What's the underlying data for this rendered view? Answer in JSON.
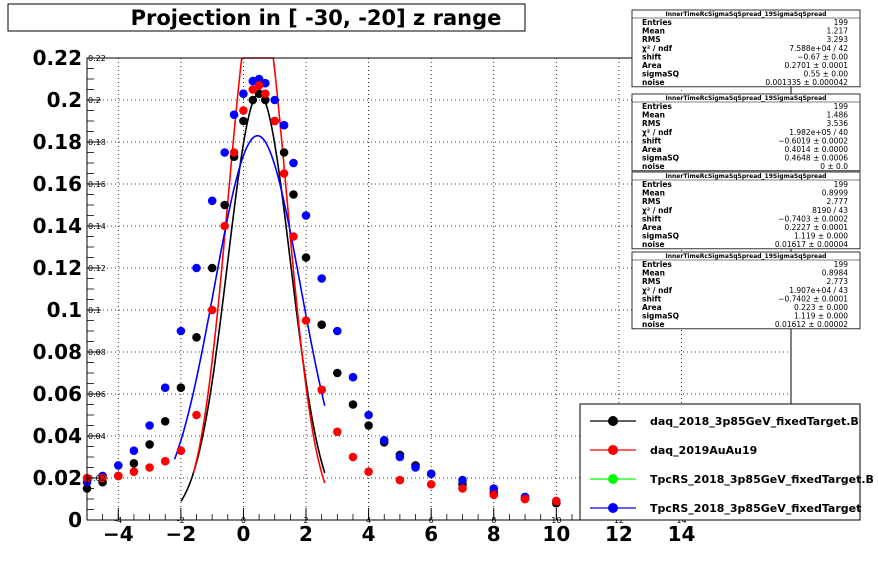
{
  "chart_data": {
    "type": "scatter",
    "title": "Projection in [ -30, -20] z range",
    "xlim": [
      -5,
      17.5
    ],
    "ylim": [
      0,
      0.22
    ],
    "x_ticks_major": [
      -4,
      -2,
      0,
      2,
      4,
      6,
      8,
      10,
      12,
      14
    ],
    "y_ticks_major": [
      0,
      0.02,
      0.04,
      0.06,
      0.08,
      0.1,
      0.12,
      0.14,
      0.16,
      0.18,
      0.2,
      0.22
    ],
    "x_tick_labels": [
      "−4",
      "−2",
      "0",
      "2",
      "4",
      "6",
      "8",
      "10",
      "12",
      "14"
    ],
    "y_tick_labels": [
      "0",
      "0.02",
      "0.04",
      "0.06",
      "0.08",
      "0.1",
      "0.12",
      "0.14",
      "0.16",
      "0.18",
      "0.2",
      "0.22"
    ],
    "x_ticks_minor_upper": [
      -4,
      -2,
      0,
      2,
      4,
      6,
      8,
      10,
      12,
      14
    ],
    "x_ticks_minor_upper_labels": [
      "-4",
      "-2",
      "0",
      "2",
      "4",
      "6",
      "8",
      "10",
      "12",
      "14"
    ],
    "y_ticks_minor_right": [
      0.02,
      0.04,
      0.06,
      0.08,
      0.1,
      0.12,
      0.14,
      0.16,
      0.18,
      0.2,
      0.22
    ],
    "y_ticks_minor_right_labels": [
      "0.02",
      "0.04",
      "0.06",
      "0.08",
      "0.1",
      "0.12",
      "0.14",
      "0.16",
      "0.18",
      "0.2",
      "0.22"
    ],
    "grid": true,
    "legend_position": "bottom-right",
    "series": [
      {
        "name": "daq_2018_3p85GeV_fixedTarget.B",
        "color": "#000000",
        "points": [
          [
            -5.0,
            0.015
          ],
          [
            -4.5,
            0.018
          ],
          [
            -4.0,
            0.021
          ],
          [
            -3.5,
            0.027
          ],
          [
            -3.0,
            0.036
          ],
          [
            -2.5,
            0.047
          ],
          [
            -2.0,
            0.063
          ],
          [
            -1.5,
            0.087
          ],
          [
            -1.0,
            0.12
          ],
          [
            -0.6,
            0.15
          ],
          [
            -0.3,
            0.173
          ],
          [
            0.0,
            0.19
          ],
          [
            0.3,
            0.2
          ],
          [
            0.5,
            0.203
          ],
          [
            0.7,
            0.2
          ],
          [
            1.0,
            0.19
          ],
          [
            1.3,
            0.175
          ],
          [
            1.6,
            0.155
          ],
          [
            2.0,
            0.125
          ],
          [
            2.5,
            0.093
          ],
          [
            3.0,
            0.07
          ],
          [
            3.5,
            0.055
          ],
          [
            4.0,
            0.045
          ],
          [
            4.5,
            0.037
          ],
          [
            5.0,
            0.031
          ],
          [
            5.5,
            0.026
          ],
          [
            6.0,
            0.022
          ],
          [
            7.0,
            0.017
          ],
          [
            8.0,
            0.013
          ],
          [
            9.0,
            0.01
          ],
          [
            10.0,
            0.008
          ]
        ]
      },
      {
        "name": "daq_2019AuAu19",
        "color": "#ff0000",
        "points": [
          [
            -5.0,
            0.02
          ],
          [
            -4.5,
            0.02
          ],
          [
            -4.0,
            0.021
          ],
          [
            -3.5,
            0.023
          ],
          [
            -3.0,
            0.025
          ],
          [
            -2.5,
            0.028
          ],
          [
            -2.0,
            0.033
          ],
          [
            -1.5,
            0.05
          ],
          [
            -1.0,
            0.1
          ],
          [
            -0.6,
            0.14
          ],
          [
            -0.3,
            0.175
          ],
          [
            0.0,
            0.195
          ],
          [
            0.3,
            0.205
          ],
          [
            0.5,
            0.207
          ],
          [
            0.7,
            0.203
          ],
          [
            1.0,
            0.19
          ],
          [
            1.3,
            0.165
          ],
          [
            1.6,
            0.135
          ],
          [
            2.0,
            0.095
          ],
          [
            2.5,
            0.062
          ],
          [
            3.0,
            0.042
          ],
          [
            3.5,
            0.03
          ],
          [
            4.0,
            0.023
          ],
          [
            5.0,
            0.019
          ],
          [
            6.0,
            0.017
          ],
          [
            7.0,
            0.015
          ],
          [
            8.0,
            0.012
          ],
          [
            9.0,
            0.01
          ],
          [
            10.0,
            0.009
          ]
        ]
      },
      {
        "name": "TpcRS_2018_3p85GeV_fixedTarget.B",
        "color": "#00ff00",
        "points": []
      },
      {
        "name": "TpcRS_2018_3p85GeV_fixedTarget",
        "color": "#0000ff",
        "points": [
          [
            -5.0,
            0.018
          ],
          [
            -4.5,
            0.021
          ],
          [
            -4.0,
            0.026
          ],
          [
            -3.5,
            0.033
          ],
          [
            -3.0,
            0.045
          ],
          [
            -2.5,
            0.063
          ],
          [
            -2.0,
            0.09
          ],
          [
            -1.5,
            0.12
          ],
          [
            -1.0,
            0.152
          ],
          [
            -0.6,
            0.175
          ],
          [
            -0.3,
            0.193
          ],
          [
            0.0,
            0.203
          ],
          [
            0.3,
            0.209
          ],
          [
            0.5,
            0.21
          ],
          [
            0.7,
            0.208
          ],
          [
            1.0,
            0.2
          ],
          [
            1.3,
            0.188
          ],
          [
            1.6,
            0.17
          ],
          [
            2.0,
            0.145
          ],
          [
            2.5,
            0.115
          ],
          [
            3.0,
            0.09
          ],
          [
            3.5,
            0.068
          ],
          [
            4.0,
            0.05
          ],
          [
            4.5,
            0.038
          ],
          [
            5.0,
            0.03
          ],
          [
            5.5,
            0.025
          ],
          [
            6.0,
            0.022
          ],
          [
            7.0,
            0.019
          ],
          [
            8.0,
            0.015
          ],
          [
            9.0,
            0.011
          ],
          [
            10.0,
            0.009
          ]
        ]
      }
    ],
    "fits": [
      {
        "color": "#000000",
        "mean": 0.5,
        "sigma": 1.0,
        "amp": 0.203,
        "range": [
          -2.0,
          2.6
        ]
      },
      {
        "color": "#ff0000",
        "mean": 0.45,
        "sigma": 0.93,
        "amp": 0.255,
        "range": [
          -1.6,
          2.6
        ]
      },
      {
        "color": "#0000ff",
        "mean": 0.45,
        "sigma": 1.38,
        "amp": 0.183,
        "range": [
          -2.2,
          2.6
        ]
      }
    ],
    "stat_boxes": [
      {
        "title": "InnerTimeRcSigmaSqSpread_19SigmaSqSpread",
        "rows": [
          [
            "Entries",
            "199"
          ],
          [
            "Mean",
            "1.217"
          ],
          [
            "RMS",
            "3.293"
          ],
          [
            "χ² / ndf",
            "7.588e+04 / 42"
          ],
          [
            "shift",
            "−0.67 ± 0.00"
          ],
          [
            "Area",
            "0.2701 ± 0.0001"
          ],
          [
            "sigmaSQ",
            "0.55 ± 0.00"
          ],
          [
            "noise",
            "0.001335 ± 0.000042"
          ]
        ]
      },
      {
        "title": "InnerTimeRcSigmaSqSpread_19SigmaSqSpread",
        "rows": [
          [
            "Entries",
            "199"
          ],
          [
            "Mean",
            "1.486"
          ],
          [
            "RMS",
            "3.536"
          ],
          [
            "χ² / ndf",
            "1.982e+05 / 40"
          ],
          [
            "shift",
            "−0.6019 ± 0.0002"
          ],
          [
            "Area",
            "0.4014 ± 0.0000"
          ],
          [
            "sigmaSQ",
            "0.4648 ± 0.0006"
          ],
          [
            "noise",
            "0 ± 0.0"
          ]
        ]
      },
      {
        "title": "InnerTimeRcSigmaSqSpread_19SigmaSqSpread",
        "rows": [
          [
            "Entries",
            "199"
          ],
          [
            "Mean",
            "0.8999"
          ],
          [
            "RMS",
            "2.777"
          ],
          [
            "χ² / ndf",
            "8190 / 43"
          ],
          [
            "shift",
            "−0.7403 ± 0.0002"
          ],
          [
            "Area",
            "0.2227 ± 0.0001"
          ],
          [
            "sigmaSQ",
            "1.119 ± 0.000"
          ],
          [
            "noise",
            "0.01617 ± 0.00004"
          ]
        ]
      },
      {
        "title": "InnerTimeRcSigmaSqSpread_19SigmaSqSpread",
        "rows": [
          [
            "Entries",
            "199"
          ],
          [
            "Mean",
            "0.8984"
          ],
          [
            "RMS",
            "2.773"
          ],
          [
            "χ² / ndf",
            "1.907e+04 / 43"
          ],
          [
            "shift",
            "−0.7402 ± 0.0001"
          ],
          [
            "Area",
            "0.223 ± 0.000"
          ],
          [
            "sigmaSQ",
            "1.119 ± 0.000"
          ],
          [
            "noise",
            "0.01612 ± 0.00002"
          ]
        ]
      }
    ]
  }
}
